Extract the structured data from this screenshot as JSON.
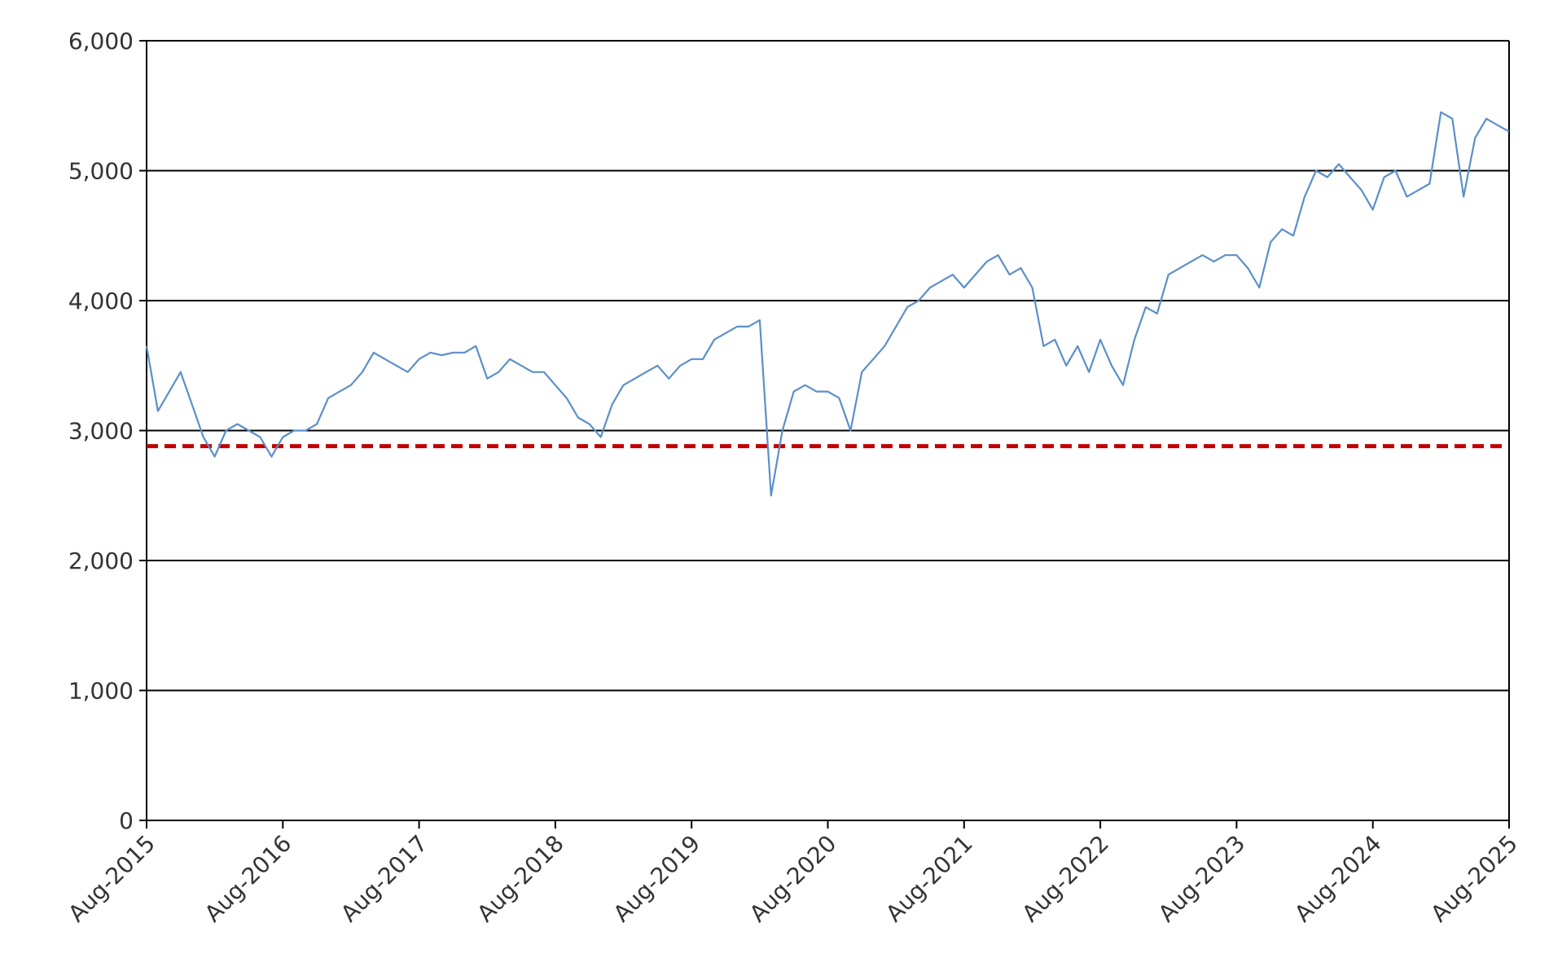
{
  "chart_data": {
    "type": "line",
    "x": [
      "2015-08",
      "2015-09",
      "2015-10",
      "2015-11",
      "2015-12",
      "2016-01",
      "2016-02",
      "2016-03",
      "2016-04",
      "2016-05",
      "2016-06",
      "2016-07",
      "2016-08",
      "2016-09",
      "2016-10",
      "2016-11",
      "2016-12",
      "2017-01",
      "2017-02",
      "2017-03",
      "2017-04",
      "2017-05",
      "2017-06",
      "2017-07",
      "2017-08",
      "2017-09",
      "2017-10",
      "2017-11",
      "2017-12",
      "2018-01",
      "2018-02",
      "2018-03",
      "2018-04",
      "2018-05",
      "2018-06",
      "2018-07",
      "2018-08",
      "2018-09",
      "2018-10",
      "2018-11",
      "2018-12",
      "2019-01",
      "2019-02",
      "2019-03",
      "2019-04",
      "2019-05",
      "2019-06",
      "2019-07",
      "2019-08",
      "2019-09",
      "2019-10",
      "2019-11",
      "2019-12",
      "2020-01",
      "2020-02",
      "2020-03",
      "2020-04",
      "2020-05",
      "2020-06",
      "2020-07",
      "2020-08",
      "2020-09",
      "2020-10",
      "2020-11",
      "2020-12",
      "2021-01",
      "2021-02",
      "2021-03",
      "2021-04",
      "2021-05",
      "2021-06",
      "2021-07",
      "2021-08",
      "2021-09",
      "2021-10",
      "2021-11",
      "2021-12",
      "2022-01",
      "2022-02",
      "2022-03",
      "2022-04",
      "2022-05",
      "2022-06",
      "2022-07",
      "2022-08",
      "2022-09",
      "2022-10",
      "2022-11",
      "2022-12",
      "2023-01",
      "2023-02",
      "2023-03",
      "2023-04",
      "2023-05",
      "2023-06",
      "2023-07",
      "2023-08",
      "2023-09",
      "2023-10",
      "2023-11",
      "2023-12",
      "2024-01",
      "2024-02",
      "2024-03",
      "2024-04",
      "2024-05",
      "2024-06",
      "2024-07",
      "2024-08",
      "2024-09",
      "2024-10",
      "2024-11",
      "2024-12",
      "2025-01",
      "2025-02",
      "2025-03",
      "2025-04",
      "2025-05",
      "2025-06",
      "2025-07",
      "2025-08"
    ],
    "series": [
      {
        "color": "#5b8fc9",
        "values": [
          3650,
          3150,
          3300,
          3450,
          3200,
          2950,
          2800,
          3000,
          3050,
          3000,
          2950,
          2800,
          2950,
          3000,
          3000,
          3050,
          3250,
          3300,
          3350,
          3450,
          3600,
          3550,
          3500,
          3450,
          3550,
          3600,
          3580,
          3600,
          3600,
          3650,
          3400,
          3450,
          3550,
          3500,
          3450,
          3450,
          3350,
          3250,
          3100,
          3050,
          2950,
          3200,
          3350,
          3400,
          3450,
          3500,
          3400,
          3500,
          3550,
          3550,
          3700,
          3750,
          3800,
          3800,
          3850,
          2500,
          3000,
          3300,
          3350,
          3300,
          3300,
          3250,
          3000,
          3450,
          3550,
          3650,
          3800,
          3950,
          4000,
          4100,
          4150,
          4200,
          4100,
          4200,
          4300,
          4350,
          4200,
          4250,
          4100,
          3650,
          3700,
          3500,
          3650,
          3450,
          3700,
          3500,
          3350,
          3700,
          3950,
          3900,
          4200,
          4250,
          4300,
          4350,
          4300,
          4350,
          4350,
          4250,
          4100,
          4450,
          4550,
          4500,
          4800,
          5000,
          4950,
          5050,
          4950,
          4850,
          4700,
          4950,
          5000,
          4800,
          4850,
          4900,
          5450,
          5400,
          4800,
          5250,
          5400,
          5350,
          5300
        ]
      }
    ],
    "reference_line": {
      "value": 2880,
      "color": "#c00000",
      "style": "dashed"
    },
    "xlim": [
      "2015-08",
      "2025-08"
    ],
    "xticks": [
      {
        "value": "2015-08",
        "label": "Aug-2015"
      },
      {
        "value": "2016-08",
        "label": "Aug-2016"
      },
      {
        "value": "2017-08",
        "label": "Aug-2017"
      },
      {
        "value": "2018-08",
        "label": "Aug-2018"
      },
      {
        "value": "2019-08",
        "label": "Aug-2019"
      },
      {
        "value": "2020-08",
        "label": "Aug-2020"
      },
      {
        "value": "2021-08",
        "label": "Aug-2021"
      },
      {
        "value": "2022-08",
        "label": "Aug-2022"
      },
      {
        "value": "2023-08",
        "label": "Aug-2023"
      },
      {
        "value": "2024-08",
        "label": "Aug-2024"
      },
      {
        "value": "2025-08",
        "label": "Aug-2025"
      }
    ],
    "ylim": [
      0,
      6000
    ],
    "yticks": [
      0,
      {
        "value": 1000,
        "label": "1,000"
      },
      {
        "value": 2000,
        "label": "2,000"
      },
      {
        "value": 3000,
        "label": "3,000"
      },
      {
        "value": 4000,
        "label": "4,000"
      },
      {
        "value": 5000,
        "label": "5,000"
      },
      {
        "value": 6000,
        "label": "6,000"
      }
    ],
    "grid": true
  }
}
